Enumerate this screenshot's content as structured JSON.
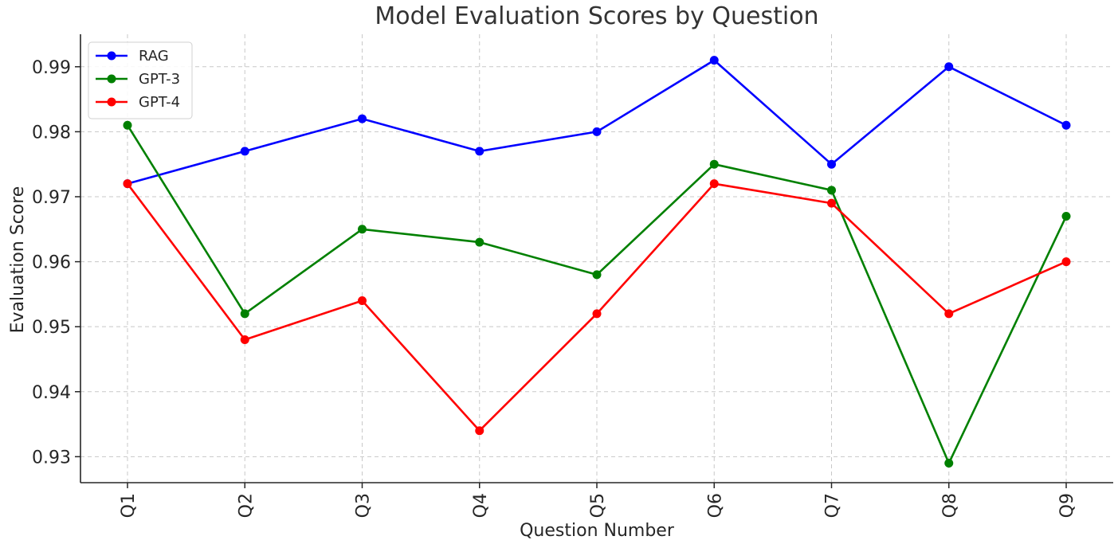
{
  "chart_data": {
    "type": "line",
    "title": "Model Evaluation Scores by Question",
    "xlabel": "Question Number",
    "ylabel": "Evaluation Score",
    "categories": [
      "Q1",
      "Q2",
      "Q3",
      "Q4",
      "Q5",
      "Q6",
      "Q7",
      "Q8",
      "Q9"
    ],
    "ylim": [
      0.926,
      0.995
    ],
    "yticks": [
      0.93,
      0.94,
      0.95,
      0.96,
      0.97,
      0.98,
      0.99
    ],
    "ytick_labels": [
      "0.93",
      "0.94",
      "0.95",
      "0.96",
      "0.97",
      "0.98",
      "0.99"
    ],
    "grid": true,
    "legend_position": "top-left",
    "series": [
      {
        "name": "RAG",
        "color": "#0000ff",
        "values": [
          0.972,
          0.977,
          0.982,
          0.977,
          0.98,
          0.991,
          0.975,
          0.99,
          0.981
        ]
      },
      {
        "name": "GPT-3",
        "color": "#008000",
        "values": [
          0.981,
          0.952,
          0.965,
          0.963,
          0.958,
          0.975,
          0.971,
          0.929,
          0.967
        ]
      },
      {
        "name": "GPT-4",
        "color": "#ff0000",
        "values": [
          0.972,
          0.948,
          0.954,
          0.934,
          0.952,
          0.972,
          0.969,
          0.952,
          0.96
        ]
      }
    ]
  }
}
